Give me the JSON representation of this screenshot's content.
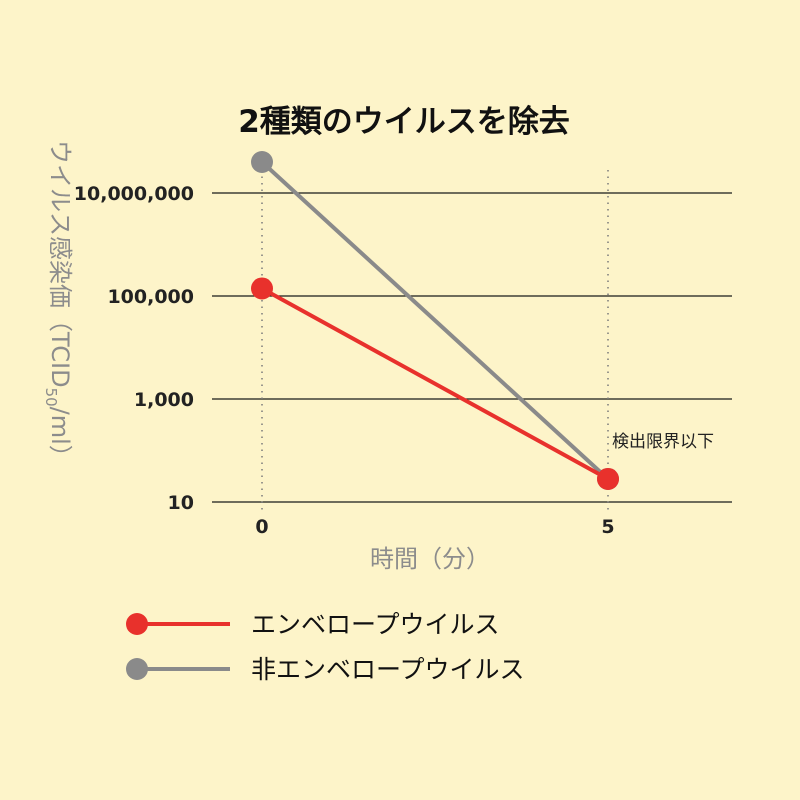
{
  "chart_data": {
    "type": "line",
    "title": "2種類のウイルスを除去",
    "xlabel": "時間（分）",
    "ylabel_main": "ウイルス感染価（TCID",
    "ylabel_sub": "50",
    "ylabel_end": "/ml）",
    "y_scale": "log",
    "ylim": [
      10,
      100000000
    ],
    "y_ticks": [
      10,
      1000,
      100000,
      10000000
    ],
    "y_tick_labels": [
      "10",
      "1,000",
      "100,000",
      "10,000,000"
    ],
    "x_ticks": [
      0,
      5
    ],
    "x_tick_labels": [
      "0",
      "5"
    ],
    "xlim": [
      -0.7,
      6.8
    ],
    "grid": "horizontal",
    "series": [
      {
        "name": "エンベロープウイルス",
        "color": "#e8312c",
        "x": [
          0,
          5
        ],
        "y": [
          140000,
          28
        ]
      },
      {
        "name": "非エンベロープウイルス",
        "color": "#8a8a8a",
        "x": [
          0,
          5
        ],
        "y": [
          40000000,
          28
        ]
      }
    ],
    "annotation": {
      "text": "検出限界以下",
      "x": 5
    },
    "legend_position": "bottom-left"
  }
}
